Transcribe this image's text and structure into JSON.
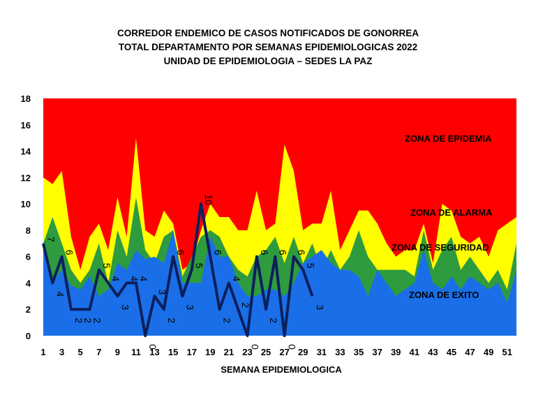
{
  "chart_data": {
    "type": "area",
    "title_lines": [
      "CORREDOR  ENDEMICO  DE CASOS NOTIFICADOS  DE GONORREA",
      "TOTAL DEPARTAMENTO  POR SEMANAS EPIDEMIOLOGICAS  2022",
      "UNIDAD  DE EPIDEMIOLOGIA  – SEDES LA PAZ"
    ],
    "xlabel": "SEMANA EPIDEMIOLOGICA",
    "ylabel": "",
    "ylim": [
      0,
      18
    ],
    "yticks": [
      "0",
      "2",
      "4",
      "6",
      "8",
      "10",
      "12",
      "14",
      "16",
      "18"
    ],
    "xticks": [
      "1",
      "3",
      "5",
      "7",
      "9",
      "11",
      "13",
      "15",
      "17",
      "19",
      "21",
      "23",
      "25",
      "27",
      "29",
      "31",
      "33",
      "35",
      "37",
      "39",
      "41",
      "43",
      "45",
      "47",
      "49",
      "51"
    ],
    "weeks": [
      1,
      2,
      3,
      4,
      5,
      6,
      7,
      8,
      9,
      10,
      11,
      12,
      13,
      14,
      15,
      16,
      17,
      18,
      19,
      20,
      21,
      22,
      23,
      24,
      25,
      26,
      27,
      28,
      29,
      30,
      31,
      32,
      33,
      34,
      35,
      36,
      37,
      38,
      39,
      40,
      41,
      42,
      43,
      44,
      45,
      46,
      47,
      48,
      49,
      50,
      51,
      52
    ],
    "zones": [
      {
        "name": "ZONA DE  EXITO",
        "color": "#1a6fe8",
        "values": [
          7,
          4,
          5,
          3.8,
          3.5,
          4.5,
          3,
          3.5,
          5.5,
          5,
          6.5,
          5.8,
          6,
          5.5,
          8,
          4,
          4,
          4,
          7.5,
          6,
          6,
          4,
          3,
          3,
          3.5,
          3.5,
          3,
          4,
          5.5,
          6,
          6.5,
          5.5,
          5,
          5,
          4.5,
          3,
          5,
          4,
          3,
          3.5,
          4,
          6.5,
          4,
          3.5,
          4.5,
          3.5,
          4.5,
          4,
          3.5,
          4,
          2.5,
          5
        ]
      },
      {
        "name": "ZONA DE  SEGURIDAD",
        "color": "#2e9b3e",
        "values": [
          7,
          9,
          7,
          5,
          4,
          5,
          7,
          4,
          8,
          6,
          10.5,
          6.5,
          5.5,
          7.5,
          8,
          4.5,
          6,
          7.5,
          8,
          7.5,
          6,
          5,
          4.5,
          6,
          6.5,
          7.5,
          5.5,
          7.5,
          5.5,
          7,
          5,
          6.5,
          5,
          6,
          8,
          6,
          5,
          5,
          5,
          5,
          4.5,
          8,
          5,
          6.5,
          7.5,
          5,
          6,
          5,
          4,
          5,
          3.5,
          7
        ]
      },
      {
        "name": "ZONA DE ALARMA",
        "color": "#ffff00",
        "values": [
          12,
          11.5,
          12.5,
          7.5,
          5,
          7.5,
          8.5,
          6.5,
          10.5,
          7.5,
          15,
          8,
          7.5,
          9.5,
          8.5,
          5,
          5.5,
          8,
          10,
          9,
          9,
          8,
          8,
          11,
          8,
          8.5,
          14.5,
          12.5,
          8,
          8.5,
          8.5,
          11,
          6.5,
          8,
          9.5,
          9.5,
          8.5,
          7,
          6,
          6.5,
          6.5,
          8.5,
          5.5,
          10,
          9.5,
          7.5,
          7,
          7.5,
          6,
          8,
          8.5,
          9
        ]
      },
      {
        "name": "ZONA DE EPIDEMIA",
        "color": "#ff0000",
        "values": [
          18,
          18,
          18,
          18,
          18,
          18,
          18,
          18,
          18,
          18,
          18,
          18,
          18,
          18,
          18,
          18,
          18,
          18,
          18,
          18,
          18,
          18,
          18,
          18,
          18,
          18,
          18,
          18,
          18,
          18,
          18,
          18,
          18,
          18,
          18,
          18,
          18,
          18,
          18,
          18,
          18,
          18,
          18,
          18,
          18,
          18,
          18,
          18,
          18,
          18,
          18,
          18
        ]
      }
    ],
    "series": [
      {
        "name": "",
        "color": "#0b1f5c",
        "weeks": [
          1,
          2,
          3,
          4,
          5,
          6,
          7,
          8,
          9,
          10,
          11,
          12,
          13,
          14,
          15,
          16,
          17,
          18,
          19,
          20,
          21,
          22,
          23,
          24,
          25,
          26,
          27,
          28,
          29,
          30
        ],
        "values": [
          7,
          4,
          6,
          2,
          2,
          2,
          5,
          4,
          3,
          4,
          4,
          0,
          3,
          2,
          6,
          3,
          5,
          10,
          6,
          2,
          4,
          2,
          0,
          6,
          2,
          6,
          0,
          6,
          5,
          3
        ],
        "labels": [
          "7",
          "4",
          "6",
          "2",
          "2",
          "2",
          "5",
          "4",
          "3",
          "4",
          "4",
          "0",
          "3",
          "2",
          "6",
          "3",
          "5",
          "10",
          "6",
          "2",
          "4",
          "2",
          "0",
          "6",
          "2",
          "6",
          "0",
          "6",
          "5",
          "3"
        ]
      }
    ],
    "grid": false,
    "legend": "none"
  }
}
